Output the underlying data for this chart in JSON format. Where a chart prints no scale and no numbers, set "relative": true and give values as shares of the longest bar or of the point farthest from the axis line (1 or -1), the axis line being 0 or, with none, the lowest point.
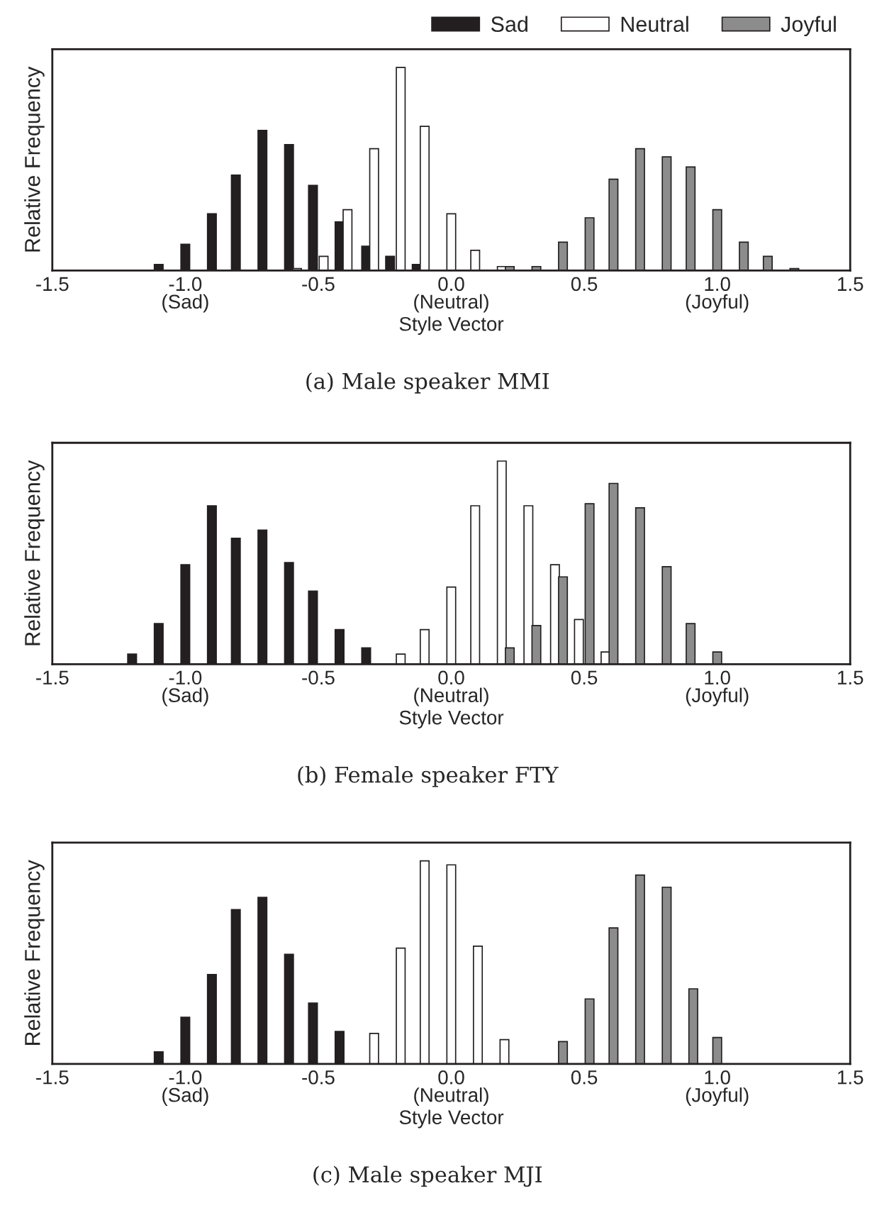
{
  "chart_data": [
    {
      "type": "bar",
      "relative": true,
      "xlabel": "Style Vector",
      "ylabel": "Relative Frequency",
      "legend": "top right",
      "xlim": [
        -1.5,
        1.5
      ],
      "xticks": [
        {
          "value": -1.5,
          "label": "-1.5"
        },
        {
          "value": -1.0,
          "label": "-1.0\n(Sad)"
        },
        {
          "value": -0.5,
          "label": "-0.5"
        },
        {
          "value": 0.0,
          "label": "0.0\n(Neutral)"
        },
        {
          "value": 0.5,
          "label": "0.5"
        },
        {
          "value": 1.0,
          "label": "1.0\n(Joyful)"
        },
        {
          "value": 1.5,
          "label": "1.5"
        }
      ],
      "annotations": [
        "(a) Male speaker MMI"
      ],
      "series": [
        {
          "name": "Sad",
          "color": "#231f20",
          "x": [
            -1.1,
            -1.0,
            -0.9,
            -0.81,
            -0.71,
            -0.61,
            -0.52,
            -0.42,
            -0.32,
            -0.23,
            -0.13
          ],
          "values": [
            0.03,
            0.13,
            0.28,
            0.47,
            0.69,
            0.62,
            0.42,
            0.24,
            0.12,
            0.07,
            0.03
          ]
        },
        {
          "name": "Neutral",
          "color": "#ffffff",
          "x": [
            -0.58,
            -0.48,
            -0.39,
            -0.29,
            -0.19,
            -0.1,
            0.0,
            0.09,
            0.19
          ],
          "values": [
            0.01,
            0.07,
            0.3,
            0.6,
            1.0,
            0.71,
            0.28,
            0.1,
            0.02
          ]
        },
        {
          "name": "Joyful",
          "color": "#8c8c8c",
          "x": [
            0.22,
            0.32,
            0.42,
            0.52,
            0.61,
            0.71,
            0.81,
            0.9,
            1.0,
            1.1,
            1.19,
            1.29
          ],
          "values": [
            0.02,
            0.02,
            0.14,
            0.26,
            0.45,
            0.6,
            0.56,
            0.51,
            0.3,
            0.14,
            0.07,
            0.01
          ]
        }
      ]
    },
    {
      "type": "bar",
      "relative": true,
      "xlabel": "Style Vector",
      "ylabel": "Relative Frequency",
      "xlim": [
        -1.5,
        1.5
      ],
      "xticks": [
        {
          "value": -1.5,
          "label": "-1.5"
        },
        {
          "value": -1.0,
          "label": "-1.0\n(Sad)"
        },
        {
          "value": -0.5,
          "label": "-0.5"
        },
        {
          "value": 0.0,
          "label": "0.0\n(Neutral)"
        },
        {
          "value": 0.5,
          "label": "0.5"
        },
        {
          "value": 1.0,
          "label": "1.0\n(Joyful)"
        },
        {
          "value": 1.5,
          "label": "1.5"
        }
      ],
      "annotations": [
        "(b) Female speaker FTY"
      ],
      "series": [
        {
          "color": "#231f20",
          "x": [
            -1.2,
            -1.1,
            -1.0,
            -0.9,
            -0.81,
            -0.71,
            -0.61,
            -0.52,
            -0.42,
            -0.32
          ],
          "values": [
            0.05,
            0.2,
            0.49,
            0.78,
            0.62,
            0.66,
            0.5,
            0.36,
            0.17,
            0.08
          ]
        },
        {
          "color": "#ffffff",
          "x": [
            -0.19,
            -0.1,
            0.0,
            0.09,
            0.19,
            0.29,
            0.39,
            0.48,
            0.58
          ],
          "values": [
            0.05,
            0.17,
            0.38,
            0.78,
            1.0,
            0.78,
            0.49,
            0.22,
            0.06
          ]
        },
        {
          "color": "#8c8c8c",
          "x": [
            0.22,
            0.32,
            0.42,
            0.52,
            0.61,
            0.71,
            0.81,
            0.9,
            1.0
          ],
          "values": [
            0.08,
            0.19,
            0.43,
            0.79,
            0.89,
            0.77,
            0.48,
            0.2,
            0.06
          ]
        }
      ]
    },
    {
      "type": "bar",
      "relative": true,
      "xlabel": "Style Vector",
      "ylabel": "Relative Frequency",
      "xlim": [
        -1.5,
        1.5
      ],
      "xticks": [
        {
          "value": -1.5,
          "label": "-1.5"
        },
        {
          "value": -1.0,
          "label": "-1.0\n(Sad)"
        },
        {
          "value": -0.5,
          "label": "-0.5"
        },
        {
          "value": 0.0,
          "label": "0.0\n(Neutral)"
        },
        {
          "value": 0.5,
          "label": "0.5"
        },
        {
          "value": 1.0,
          "label": "1.0\n(Joyful)"
        },
        {
          "value": 1.5,
          "label": "1.5"
        }
      ],
      "annotations": [
        "(c) Male speaker MJI"
      ],
      "series": [
        {
          "color": "#231f20",
          "x": [
            -1.1,
            -1.0,
            -0.9,
            -0.81,
            -0.71,
            -0.61,
            -0.52,
            -0.42
          ],
          "values": [
            0.06,
            0.23,
            0.44,
            0.76,
            0.82,
            0.54,
            0.3,
            0.16
          ]
        },
        {
          "color": "#ffffff",
          "x": [
            -0.29,
            -0.19,
            -0.1,
            0.0,
            0.1,
            0.2
          ],
          "values": [
            0.15,
            0.57,
            1.0,
            0.98,
            0.58,
            0.12
          ]
        },
        {
          "color": "#8c8c8c",
          "x": [
            0.42,
            0.52,
            0.61,
            0.71,
            0.81,
            0.91,
            1.0
          ],
          "values": [
            0.11,
            0.32,
            0.67,
            0.93,
            0.87,
            0.37,
            0.13
          ]
        }
      ]
    }
  ]
}
